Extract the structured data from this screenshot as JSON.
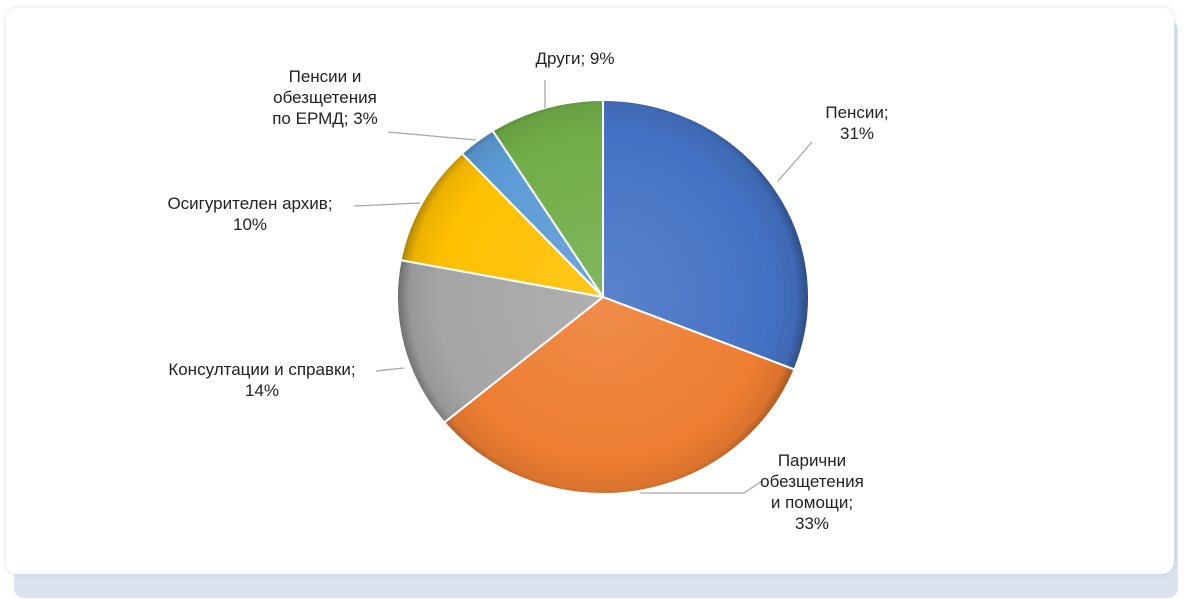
{
  "chart_data": {
    "type": "pie",
    "title": "",
    "start_angle_deg": 0,
    "direction": "clockwise",
    "slices": [
      {
        "label_lines": [
          "Пенсии;",
          "31%"
        ],
        "category": "Пенсии",
        "value": 31,
        "color": "#4472C4"
      },
      {
        "label_lines": [
          "Парични",
          "обезщетения",
          "и помощи;",
          "33%"
        ],
        "category": "Парични обезщетения и помощи",
        "value": 33,
        "color": "#ED7D31"
      },
      {
        "label_lines": [
          "Консултации и справки;",
          "14%"
        ],
        "category": "Консултации и справки",
        "value": 14,
        "color": "#A5A5A5"
      },
      {
        "label_lines": [
          "Осигурителен архив;",
          "10%"
        ],
        "category": "Осигурителен архив",
        "value": 10,
        "color": "#FFC000"
      },
      {
        "label_lines": [
          "Пенсии и",
          "обезщетения",
          "по ЕРМД; 3%"
        ],
        "category": "Пенсии и обезщетения по ЕРМД",
        "value": 3,
        "color": "#5B9BD5"
      },
      {
        "label_lines": [
          "Други; 9%"
        ],
        "category": "Други",
        "value": 9,
        "color": "#70AD47"
      }
    ]
  }
}
